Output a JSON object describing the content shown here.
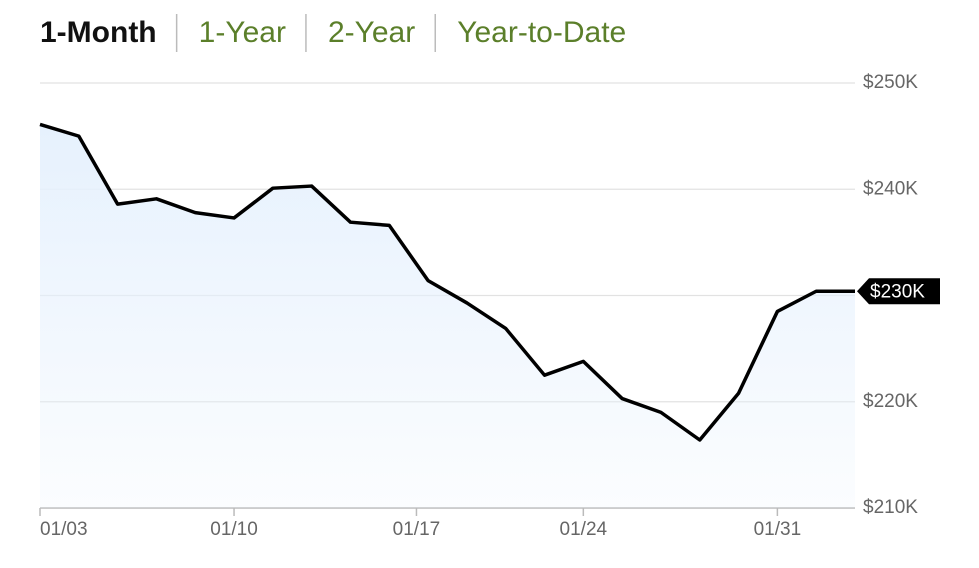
{
  "tabs": [
    "1-Month",
    "1-Year",
    "2-Year",
    "Year-to-Date"
  ],
  "active_tab": 0,
  "chart_data": {
    "type": "line",
    "x": [
      0,
      1,
      2,
      3,
      4,
      5,
      6,
      7,
      8,
      9,
      10,
      11,
      12,
      13,
      14,
      15,
      16,
      17,
      18,
      19,
      20,
      21
    ],
    "values": [
      246100,
      245000,
      238600,
      239100,
      237800,
      237300,
      240100,
      240300,
      236900,
      236600,
      231400,
      229300,
      226900,
      222500,
      223800,
      220300,
      219000,
      216400,
      220800,
      228500,
      230400,
      230400
    ],
    "value_labels": [
      null,
      null,
      null,
      null,
      null,
      null,
      null,
      null,
      null,
      null,
      null,
      null,
      null,
      null,
      null,
      null,
      null,
      null,
      null,
      null,
      null,
      "$230K"
    ],
    "color": "#000000",
    "fill_color": "#e6f1fd",
    "xlim": [
      0,
      21
    ],
    "xticks": [
      {
        "value": 0,
        "label": "01/03"
      },
      {
        "value": 5,
        "label": "01/10"
      },
      {
        "value": 9.7,
        "label": "01/17"
      },
      {
        "value": 14,
        "label": "01/24"
      },
      {
        "value": 19,
        "label": "01/31"
      }
    ],
    "ylim": [
      210000,
      250000
    ],
    "yticks": [
      {
        "value": 210000,
        "label": "$210K"
      },
      {
        "value": 220000,
        "label": "$220K"
      },
      {
        "value": 230000,
        "label": "$230K"
      },
      {
        "value": 240000,
        "label": "$240K"
      },
      {
        "value": 250000,
        "label": "$250K"
      }
    ],
    "grid": true
  }
}
